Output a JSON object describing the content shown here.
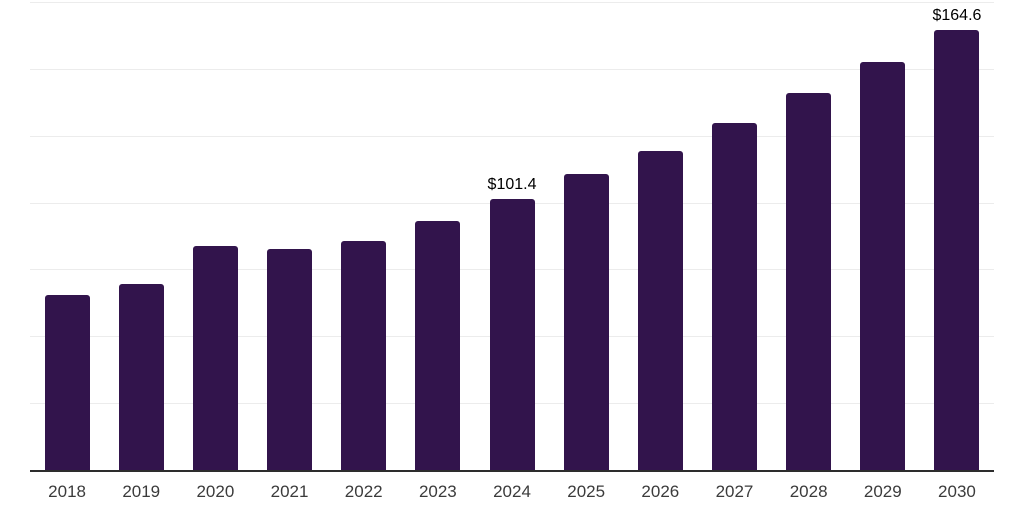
{
  "page": {
    "background_color": "#ffffff"
  },
  "chart_data": {
    "type": "bar",
    "title": "",
    "xlabel": "",
    "ylabel": "",
    "categories": [
      "2018",
      "2019",
      "2020",
      "2021",
      "2022",
      "2023",
      "2024",
      "2025",
      "2026",
      "2027",
      "2028",
      "2029",
      "2030"
    ],
    "values": [
      65.6,
      69.7,
      83.8,
      82.7,
      85.7,
      93.2,
      101.4,
      110.7,
      119.4,
      129.7,
      140.8,
      152.4,
      164.6
    ],
    "data_labels": [
      "",
      "",
      "",
      "",
      "",
      "",
      "$101.4",
      "",
      "",
      "",
      "",
      "",
      "$164.6"
    ],
    "ylim": [
      0,
      175
    ],
    "grid_step": 25,
    "grid_visible": true,
    "legend_position": "none",
    "colors": {
      "bar": "#32144c",
      "gridline": "#ececec",
      "axis_line": "#2d2d2d",
      "tick_label": "#3b3b3b",
      "value_label": "#000000"
    }
  }
}
